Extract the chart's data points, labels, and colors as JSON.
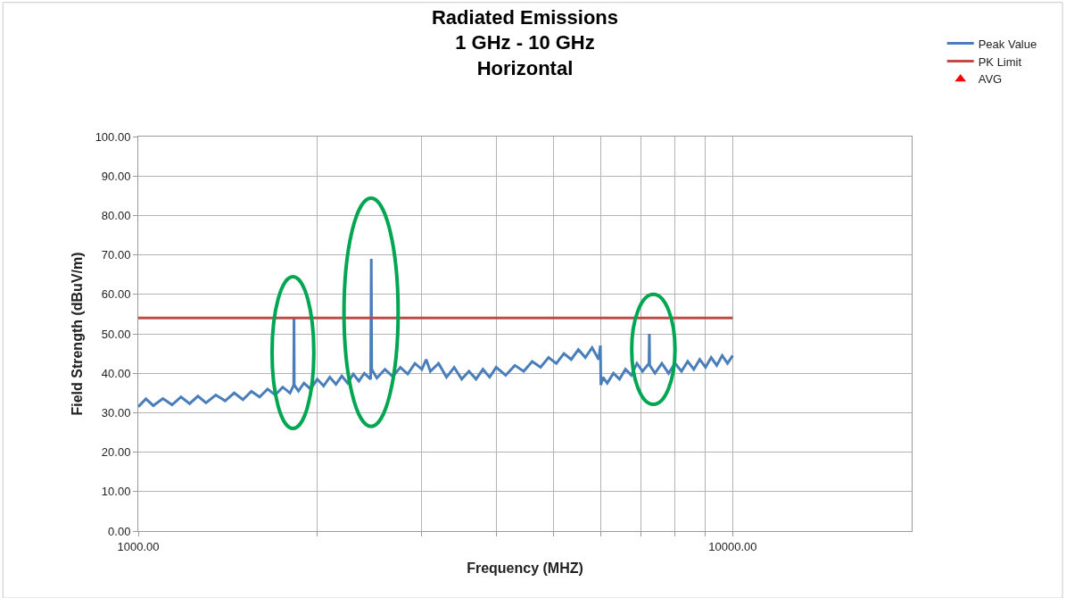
{
  "chart_data": {
    "type": "line",
    "title": "Radiated Emissions\n1 GHz - 10 GHz\nHorizontal",
    "xlabel": "Frequency (MHZ)",
    "ylabel": "Field Strength (dBuV/m)",
    "log": "x",
    "xlim": [
      1000,
      20000
    ],
    "xticks": [
      {
        "value": 1000,
        "label": "1000.00"
      },
      {
        "value": 2000,
        "label": null
      },
      {
        "value": 3000,
        "label": null
      },
      {
        "value": 4000,
        "label": null
      },
      {
        "value": 5000,
        "label": null
      },
      {
        "value": 6000,
        "label": null
      },
      {
        "value": 7000,
        "label": null
      },
      {
        "value": 8000,
        "label": null
      },
      {
        "value": 9000,
        "label": null
      },
      {
        "value": 10000,
        "label": "10000.00"
      }
    ],
    "ylim": [
      0,
      100
    ],
    "yticks": [
      {
        "value": 0,
        "label": "0.00"
      },
      {
        "value": 10,
        "label": "10.00"
      },
      {
        "value": 20,
        "label": "20.00"
      },
      {
        "value": 30,
        "label": "30.00"
      },
      {
        "value": 40,
        "label": "40.00"
      },
      {
        "value": 50,
        "label": "50.00"
      },
      {
        "value": 60,
        "label": "60.00"
      },
      {
        "value": 70,
        "label": "70.00"
      },
      {
        "value": 80,
        "label": "80.00"
      },
      {
        "value": 90,
        "label": "90.00"
      },
      {
        "value": 100,
        "label": "100.00"
      }
    ],
    "grid": true,
    "legend": "top right",
    "series": [
      {
        "name": "Peak Value",
        "color": "#4a7ebb",
        "marker": "none",
        "x": [
          1000,
          1030,
          1060,
          1100,
          1140,
          1180,
          1220,
          1260,
          1300,
          1350,
          1400,
          1450,
          1500,
          1550,
          1600,
          1650,
          1700,
          1750,
          1800,
          1826,
          1828,
          1830,
          1860,
          1900,
          1950,
          2000,
          2050,
          2100,
          2150,
          2200,
          2250,
          2300,
          2350,
          2400,
          2460,
          2466,
          2470,
          2520,
          2600,
          2680,
          2760,
          2840,
          2920,
          3000,
          3050,
          3100,
          3200,
          3300,
          3400,
          3500,
          3600,
          3700,
          3800,
          3900,
          4000,
          4150,
          4300,
          4450,
          4600,
          4750,
          4900,
          5050,
          5200,
          5350,
          5500,
          5650,
          5800,
          5950,
          5990,
          6000,
          6050,
          6150,
          6300,
          6450,
          6600,
          6750,
          6900,
          7050,
          7230,
          7240,
          7250,
          7400,
          7600,
          7800,
          8000,
          8200,
          8400,
          8600,
          8800,
          9000,
          9200,
          9400,
          9600,
          9800,
          10000
        ],
        "values": [
          31.5,
          33.5,
          31.8,
          33.6,
          32,
          34,
          32.3,
          34.2,
          32.5,
          34.5,
          33,
          35,
          33.3,
          35.4,
          34,
          36,
          34.5,
          36.5,
          35,
          37,
          54,
          37,
          35.5,
          37.5,
          36,
          38.5,
          36.8,
          39,
          37.2,
          39.3,
          37.5,
          39.8,
          38,
          40,
          38.5,
          69,
          41,
          38.8,
          41,
          39.2,
          41.5,
          39.8,
          42.5,
          41,
          43.5,
          40.5,
          42.5,
          39,
          41.5,
          38.5,
          40.5,
          38.5,
          41,
          39,
          41.5,
          39.5,
          42,
          40.5,
          43,
          41.5,
          44,
          42.5,
          45,
          43.5,
          46,
          44,
          46.5,
          43.5,
          47,
          37,
          39,
          37.5,
          40,
          38.5,
          41,
          39.5,
          42.5,
          40.5,
          42.5,
          50,
          42,
          40,
          42.5,
          40,
          42.5,
          40.5,
          43,
          41,
          43.5,
          41.5,
          44,
          42,
          44.5,
          42.5,
          44.5
        ]
      },
      {
        "name": "PK Limit",
        "color": "#be4b48",
        "marker": "none",
        "x": [
          1000,
          10000
        ],
        "values": [
          54,
          54
        ]
      },
      {
        "name": "AVG",
        "color": "#ff0000",
        "type": "scatter",
        "marker": "triangle",
        "values": [
          null
        ]
      }
    ]
  }
}
